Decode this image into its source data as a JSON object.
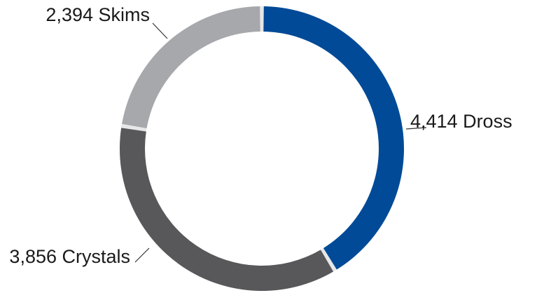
{
  "chart_data": {
    "type": "pie",
    "variant": "donut",
    "title": "",
    "legend": "none",
    "slices": [
      {
        "label": "4,414 Dross",
        "name": "Dross",
        "value": 4414,
        "color": "#004a97"
      },
      {
        "label": "3,856 Crystals",
        "name": "Crystals",
        "value": 3856,
        "color": "#58585a"
      },
      {
        "label": "2,394 Skims",
        "name": "Skims",
        "value": 2394,
        "color": "#a6a8ab"
      }
    ],
    "separator_color": "#e6e7e8",
    "start": "top, clockwise"
  }
}
